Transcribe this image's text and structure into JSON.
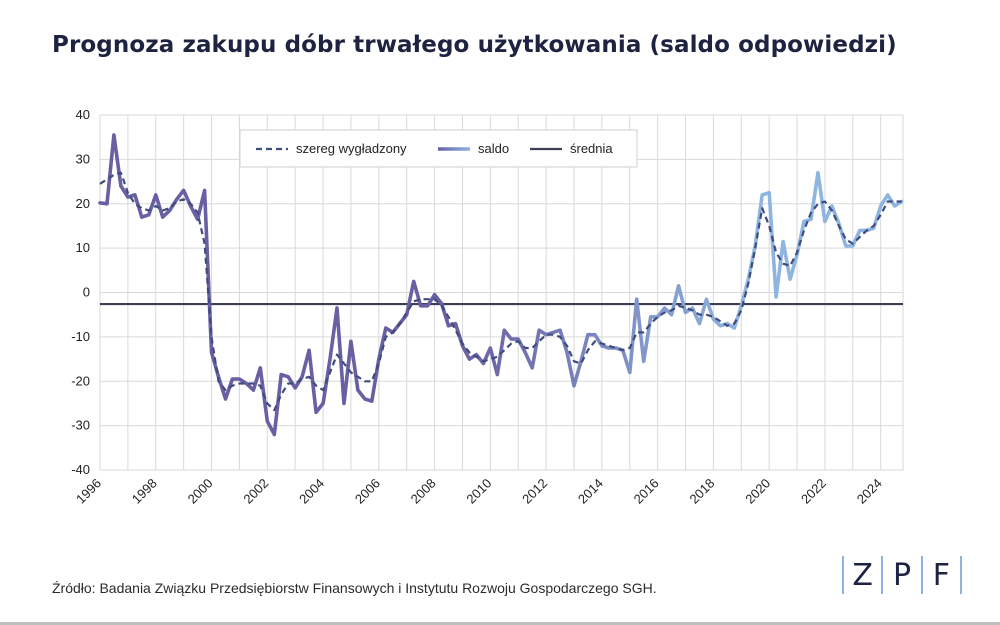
{
  "title": "Prognoza zakupu dóbr trwałego użytkowania (saldo odpowiedzi)",
  "source": "Źródło: Badania Związku Przedsiębiorstw Finansowych i Instytutu Rozwoju Gospodarczego SGH.",
  "logo": [
    "Z",
    "P",
    "F"
  ],
  "colors": {
    "saldo_dark": "#6a5fa3",
    "saldo_light": "#8eb4e0",
    "smoothed": "#3f4d7e",
    "mean": "#3b3f55",
    "grid": "#d9d9d9",
    "title": "#1d2340"
  },
  "chart_data": {
    "type": "line",
    "title": "Prognoza zakupu dóbr trwałego użytkowania (saldo odpowiedzi)",
    "xlim": [
      1996,
      2024.8
    ],
    "ylim": [
      -40,
      40
    ],
    "y_ticks": [
      "-40",
      "-30",
      "-20",
      "-10",
      "0",
      "10",
      "20",
      "30",
      "40"
    ],
    "x_ticks": [
      "1996",
      "1998",
      "2000",
      "2002",
      "2004",
      "2006",
      "2008",
      "2010",
      "2012",
      "2014",
      "2016",
      "2018",
      "2020",
      "2022",
      "2024"
    ],
    "grid": true,
    "legend_position": "top",
    "legend": [
      "szereg wygładzony",
      "saldo",
      "średnia"
    ],
    "mean": -2.6,
    "series": [
      {
        "name": "saldo",
        "x": [
          1996.0,
          1996.25,
          1996.5,
          1996.75,
          1997.0,
          1997.25,
          1997.5,
          1997.75,
          1998.0,
          1998.25,
          1998.5,
          1998.75,
          1999.0,
          1999.25,
          1999.5,
          1999.75,
          2000.0,
          2000.25,
          2000.5,
          2000.75,
          2001.0,
          2001.25,
          2001.5,
          2001.75,
          2002.0,
          2002.25,
          2002.5,
          2002.75,
          2003.0,
          2003.25,
          2003.5,
          2003.75,
          2004.0,
          2004.25,
          2004.5,
          2004.75,
          2005.0,
          2005.25,
          2005.5,
          2005.75,
          2006.0,
          2006.25,
          2006.5,
          2006.75,
          2007.0,
          2007.25,
          2007.5,
          2007.75,
          2008.0,
          2008.25,
          2008.5,
          2008.75,
          2009.0,
          2009.25,
          2009.5,
          2009.75,
          2010.0,
          2010.25,
          2010.5,
          2010.75,
          2011.0,
          2011.25,
          2011.5,
          2011.75,
          2012.0,
          2012.25,
          2012.5,
          2012.75,
          2013.0,
          2013.25,
          2013.5,
          2013.75,
          2014.0,
          2014.25,
          2014.5,
          2014.75,
          2015.0,
          2015.25,
          2015.5,
          2015.75,
          2016.0,
          2016.25,
          2016.5,
          2016.75,
          2017.0,
          2017.25,
          2017.5,
          2017.75,
          2018.0,
          2018.25,
          2018.5,
          2018.75,
          2019.0,
          2019.25,
          2019.5,
          2019.75,
          2020.0,
          2020.25,
          2020.5,
          2020.75,
          2021.0,
          2021.25,
          2021.5,
          2021.75,
          2022.0,
          2022.25,
          2022.5,
          2022.75,
          2023.0,
          2023.25,
          2023.5,
          2023.75,
          2024.0,
          2024.25,
          2024.5,
          2024.75
        ],
        "values": [
          20.2,
          20.0,
          35.5,
          24.0,
          21.5,
          22.0,
          17.0,
          17.5,
          22.0,
          17.0,
          18.5,
          21.0,
          23.0,
          19.5,
          16.5,
          23.0,
          -13.5,
          -19.0,
          -24.0,
          -19.5,
          -19.5,
          -20.5,
          -22.0,
          -17.0,
          -29.0,
          -32.0,
          -18.5,
          -19.0,
          -21.5,
          -19.0,
          -13.0,
          -27.0,
          -25.0,
          -15.0,
          -3.5,
          -25.0,
          -11.0,
          -22.0,
          -24.0,
          -24.5,
          -15.0,
          -8.0,
          -9.0,
          -7.0,
          -5.0,
          2.5,
          -3.0,
          -3.0,
          -0.5,
          -2.5,
          -7.5,
          -7.0,
          -12.0,
          -15.0,
          -14.0,
          -16.0,
          -12.5,
          -18.5,
          -8.5,
          -10.5,
          -10.5,
          -13.5,
          -17.0,
          -8.5,
          -9.5,
          -9.0,
          -8.5,
          -13.5,
          -21.0,
          -15.5,
          -9.5,
          -9.5,
          -12.0,
          -12.5,
          -12.5,
          -13.0,
          -18.0,
          -1.5,
          -15.5,
          -5.5,
          -5.5,
          -3.5,
          -5.0,
          1.5,
          -4.5,
          -3.5,
          -7.0,
          -1.5,
          -6.0,
          -7.5,
          -7.0,
          -8.0,
          -3.0,
          3.0,
          10.5,
          22.0,
          22.5,
          -1.0,
          11.5,
          3.0,
          8.5,
          16.0,
          16.5,
          27.0,
          16.0,
          19.5,
          15.5,
          10.5,
          10.5,
          14.0,
          14.0,
          14.5,
          19.5,
          22.0,
          19.5,
          20.5
        ]
      },
      {
        "name": "szereg wygładzony",
        "x": [
          1996.0,
          1996.25,
          1996.5,
          1996.75,
          1997.0,
          1997.25,
          1997.5,
          1997.75,
          1998.0,
          1998.25,
          1998.5,
          1998.75,
          1999.0,
          1999.25,
          1999.5,
          1999.75,
          2000.0,
          2000.25,
          2000.5,
          2000.75,
          2001.0,
          2001.25,
          2001.5,
          2001.75,
          2002.0,
          2002.25,
          2002.5,
          2002.75,
          2003.0,
          2003.25,
          2003.5,
          2003.75,
          2004.0,
          2004.25,
          2004.5,
          2004.75,
          2005.0,
          2005.25,
          2005.5,
          2005.75,
          2006.0,
          2006.25,
          2006.5,
          2006.75,
          2007.0,
          2007.25,
          2007.5,
          2007.75,
          2008.0,
          2008.25,
          2008.5,
          2008.75,
          2009.0,
          2009.25,
          2009.5,
          2009.75,
          2010.0,
          2010.25,
          2010.5,
          2010.75,
          2011.0,
          2011.25,
          2011.5,
          2011.75,
          2012.0,
          2012.25,
          2012.5,
          2012.75,
          2013.0,
          2013.25,
          2013.5,
          2013.75,
          2014.0,
          2014.25,
          2014.5,
          2014.75,
          2015.0,
          2015.25,
          2015.5,
          2015.75,
          2016.0,
          2016.25,
          2016.5,
          2016.75,
          2017.0,
          2017.25,
          2017.5,
          2017.75,
          2018.0,
          2018.25,
          2018.5,
          2018.75,
          2019.0,
          2019.25,
          2019.5,
          2019.75,
          2020.0,
          2020.25,
          2020.5,
          2020.75,
          2021.0,
          2021.25,
          2021.5,
          2021.75,
          2022.0,
          2022.25,
          2022.5,
          2022.75,
          2023.0,
          2023.25,
          2023.5,
          2023.75,
          2024.0,
          2024.25,
          2024.5,
          2024.75
        ],
        "values": [
          24.5,
          25.5,
          26.5,
          27.0,
          22.5,
          20.0,
          19.0,
          18.5,
          19.5,
          18.5,
          19.0,
          20.5,
          21.0,
          20.0,
          18.0,
          11.0,
          -10.0,
          -20.0,
          -22.0,
          -21.0,
          -20.5,
          -20.5,
          -20.5,
          -21.0,
          -25.0,
          -26.5,
          -23.0,
          -20.5,
          -20.5,
          -19.5,
          -19.0,
          -21.0,
          -22.0,
          -18.0,
          -14.0,
          -16.0,
          -18.0,
          -19.0,
          -20.0,
          -20.0,
          -16.0,
          -10.0,
          -9.0,
          -7.0,
          -4.5,
          -2.0,
          -1.5,
          -1.5,
          -1.5,
          -3.0,
          -5.5,
          -8.5,
          -11.5,
          -13.5,
          -14.5,
          -15.5,
          -15.0,
          -14.5,
          -13.0,
          -11.5,
          -11.0,
          -12.5,
          -12.5,
          -11.0,
          -9.5,
          -9.5,
          -10.0,
          -12.0,
          -15.5,
          -16.0,
          -13.0,
          -11.0,
          -11.5,
          -12.0,
          -12.5,
          -13.0,
          -12.5,
          -9.0,
          -9.0,
          -7.0,
          -5.5,
          -4.5,
          -4.0,
          -3.0,
          -3.5,
          -4.0,
          -5.0,
          -5.0,
          -5.5,
          -6.5,
          -7.5,
          -7.0,
          -4.0,
          2.0,
          10.0,
          19.0,
          15.0,
          9.0,
          6.5,
          6.0,
          9.0,
          14.0,
          18.0,
          20.0,
          20.5,
          18.5,
          15.0,
          12.0,
          11.0,
          12.5,
          14.0,
          15.0,
          17.5,
          20.5,
          20.5,
          20.5
        ]
      }
    ]
  }
}
